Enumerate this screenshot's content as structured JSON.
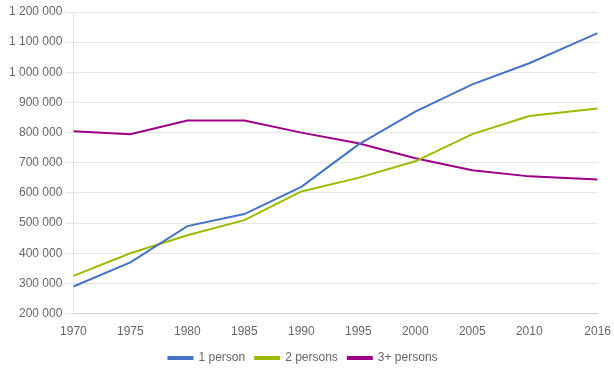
{
  "chart_data": {
    "type": "line",
    "x": [
      1970,
      1975,
      1980,
      1985,
      1990,
      1995,
      2000,
      2005,
      2010,
      2016
    ],
    "series": [
      {
        "name": "1 person",
        "color": "#4472c4",
        "values": [
          290000,
          370000,
          490000,
          530000,
          620000,
          760000,
          870000,
          960000,
          1030000,
          1130000
        ]
      },
      {
        "name": "2 persons",
        "color": "#9bbb00",
        "values": [
          325000,
          400000,
          460000,
          510000,
          605000,
          650000,
          705000,
          795000,
          855000,
          880000
        ]
      },
      {
        "name": "3+ persons",
        "color": "#9b0085",
        "values": [
          805000,
          795000,
          840000,
          840000,
          800000,
          765000,
          715000,
          675000,
          655000,
          645000
        ]
      }
    ],
    "xlim": [
      1970,
      2016
    ],
    "xticks": [
      1970,
      1975,
      1980,
      1985,
      1990,
      1995,
      2000,
      2005,
      2010,
      2016
    ],
    "ylim": [
      200000,
      1200000
    ],
    "yticks": [
      {
        "value": 200000,
        "label": "200 000"
      },
      {
        "value": 300000,
        "label": "300 000"
      },
      {
        "value": 400000,
        "label": "400 000"
      },
      {
        "value": 500000,
        "label": "500 000"
      },
      {
        "value": 600000,
        "label": "600 000"
      },
      {
        "value": 700000,
        "label": "700 000"
      },
      {
        "value": 800000,
        "label": "800 000"
      },
      {
        "value": 900000,
        "label": "900 000"
      },
      {
        "value": 1000000,
        "label": "1 000 000"
      },
      {
        "value": 1100000,
        "label": "1 100 000"
      },
      {
        "value": 1200000,
        "label": "1 200 000"
      }
    ],
    "grid": "y",
    "legend": "bottom"
  }
}
